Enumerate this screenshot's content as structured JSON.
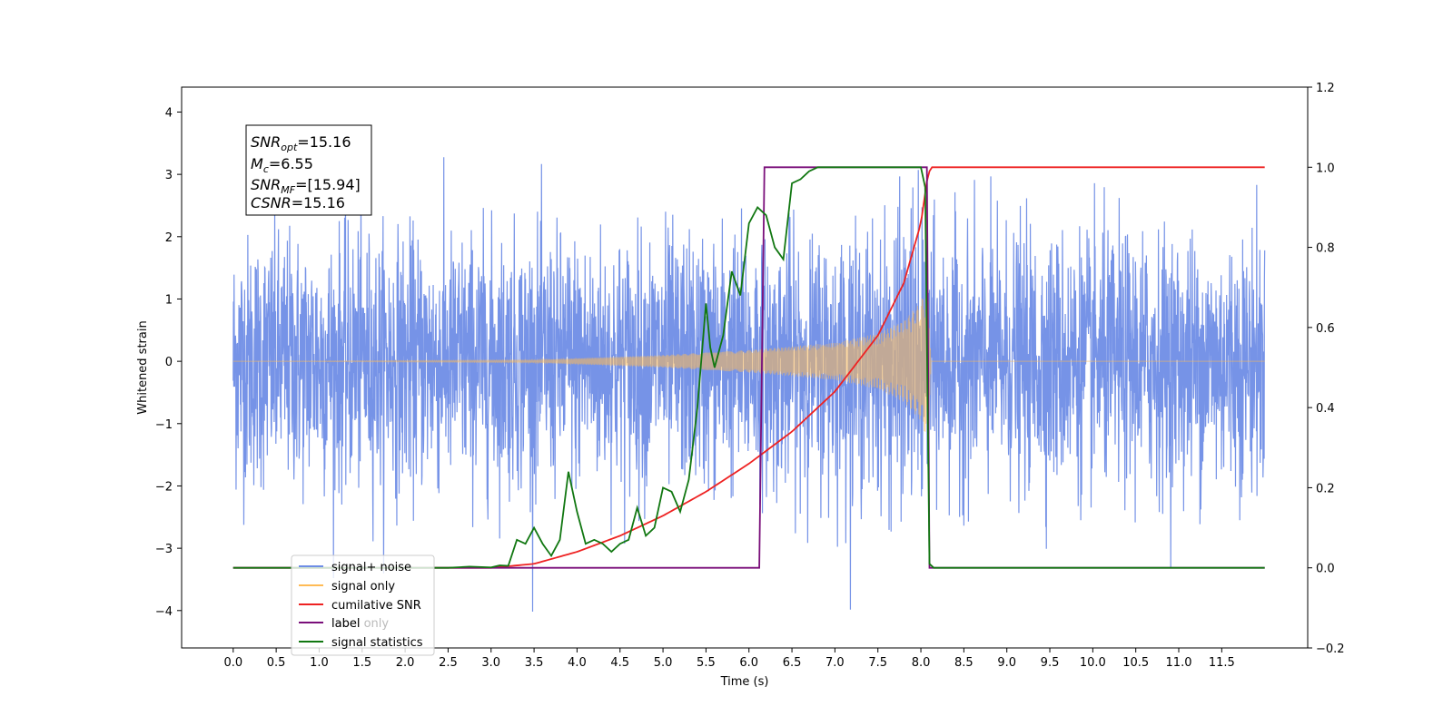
{
  "chart_data": {
    "type": "line",
    "xlabel": "Time (s)",
    "ylabel": "Whitened strain",
    "xlim": [
      -0.6,
      12.5
    ],
    "ylim": [
      -4.6,
      4.4
    ],
    "y2lim": [
      -0.2,
      1.2
    ],
    "x_ticks": [
      "0.0",
      "0.5",
      "1.0",
      "1.5",
      "2.0",
      "2.5",
      "3.0",
      "3.5",
      "4.0",
      "4.5",
      "5.0",
      "5.5",
      "6.0",
      "6.5",
      "7.0",
      "7.5",
      "8.0",
      "8.5",
      "9.0",
      "9.5",
      "10.0",
      "10.5",
      "11.0",
      "11.5"
    ],
    "y_ticks": [
      "4",
      "3",
      "2",
      "1",
      "0",
      "−1",
      "−2",
      "−3",
      "−4"
    ],
    "y2_ticks": [
      "1.2",
      "1.0",
      "0.8",
      "0.6",
      "0.4",
      "0.2",
      "0.0",
      "−0.2"
    ],
    "annotation": {
      "lines": [
        {
          "base": "SNR",
          "sub": "opt",
          "value": "=15.16"
        },
        {
          "base": "M",
          "sub": "c",
          "value": "=6.55"
        },
        {
          "base": "SNR",
          "sub": "MF",
          "value": "=[15.94]"
        },
        {
          "base": "CSNR",
          "sub": "",
          "value": "=15.16"
        }
      ]
    },
    "legend_position": "lower-left",
    "series": [
      {
        "name": "signal+ noise",
        "color": "#6f8de6",
        "axis": "left",
        "noise_sigma": 1.0,
        "t_range": [
          0.0,
          12.0
        ],
        "note_shape": "chirp plus gaussian noise, peaks near 4"
      },
      {
        "name": "signal only",
        "color": "#ffbb55",
        "axis": "left",
        "t_range": [
          0.0,
          12.0
        ],
        "envelope": [
          [
            0.0,
            0.0
          ],
          [
            3.5,
            0.02
          ],
          [
            5.0,
            0.1
          ],
          [
            6.0,
            0.18
          ],
          [
            7.0,
            0.3
          ],
          [
            7.5,
            0.45
          ],
          [
            7.8,
            0.65
          ],
          [
            8.0,
            0.95
          ],
          [
            8.08,
            1.3
          ],
          [
            8.12,
            0.0
          ],
          [
            12.0,
            0.0
          ]
        ]
      },
      {
        "name": "cumilative SNR",
        "color": "#ee2222",
        "axis": "right",
        "x": [
          0.0,
          3.0,
          3.5,
          4.0,
          4.5,
          5.0,
          5.5,
          6.0,
          6.5,
          7.0,
          7.5,
          7.8,
          8.0,
          8.08,
          8.12,
          12.0
        ],
        "values": [
          0.0,
          0.0,
          0.01,
          0.04,
          0.08,
          0.13,
          0.19,
          0.26,
          0.34,
          0.44,
          0.58,
          0.71,
          0.86,
          0.98,
          1.0,
          1.0
        ]
      },
      {
        "name": "label",
        "color": "#7a0f7a",
        "axis": "right",
        "x": [
          0.0,
          6.12,
          6.18,
          8.07,
          8.1,
          12.0
        ],
        "values": [
          0.0,
          0.0,
          1.0,
          1.0,
          0.0,
          0.0
        ]
      },
      {
        "name": "label only",
        "color": "#ff9900",
        "axis": "right",
        "hidden_line": true
      },
      {
        "name": "signal statistics",
        "color": "#117711",
        "axis": "right",
        "x": [
          0.0,
          2.5,
          2.75,
          3.0,
          3.1,
          3.2,
          3.3,
          3.4,
          3.5,
          3.6,
          3.7,
          3.8,
          3.9,
          4.0,
          4.1,
          4.2,
          4.3,
          4.4,
          4.5,
          4.6,
          4.7,
          4.8,
          4.9,
          5.0,
          5.1,
          5.2,
          5.3,
          5.4,
          5.5,
          5.55,
          5.6,
          5.7,
          5.8,
          5.9,
          6.0,
          6.1,
          6.2,
          6.3,
          6.4,
          6.5,
          6.6,
          6.7,
          6.8,
          7.0,
          7.5,
          8.0,
          8.05,
          8.1,
          8.15,
          12.0
        ],
        "values": [
          0.0,
          0.0,
          0.003,
          0.001,
          0.006,
          0.005,
          0.07,
          0.06,
          0.1,
          0.06,
          0.03,
          0.07,
          0.24,
          0.14,
          0.06,
          0.07,
          0.06,
          0.04,
          0.06,
          0.07,
          0.15,
          0.08,
          0.1,
          0.2,
          0.19,
          0.14,
          0.22,
          0.4,
          0.66,
          0.55,
          0.5,
          0.58,
          0.74,
          0.68,
          0.86,
          0.9,
          0.88,
          0.8,
          0.77,
          0.96,
          0.97,
          0.99,
          1.0,
          1.0,
          1.0,
          1.0,
          0.95,
          0.01,
          0.0,
          0.0
        ]
      }
    ]
  }
}
